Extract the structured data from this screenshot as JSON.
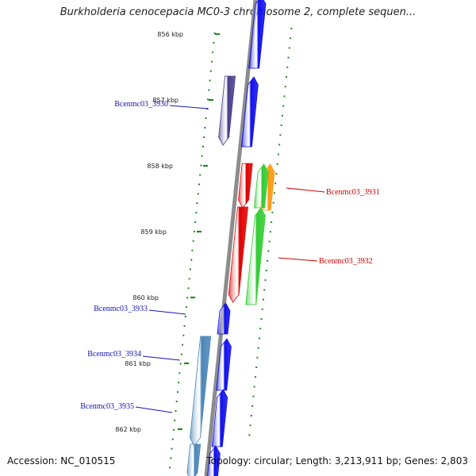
{
  "title": "Burkholderia cenocepacia MC0-3 chromosome 2, complete sequen...",
  "footer": {
    "accession_label": "Accession:",
    "accession": "NC_010515",
    "topology_text": "Topology: circular; Length: 3,213,911 bp; Genes: 2,803"
  },
  "colors": {
    "backbone": "#8c8c8c",
    "tick": "#1f8a1f",
    "blue_gene": "#1010ee",
    "purple_gene": "#4b3f8c",
    "steel_gene": "#4a86b8",
    "red_gene": "#e00000",
    "green_gene": "#33cc33",
    "orange_gene": "#ff9911",
    "label_blue": "#1414b4",
    "label_red": "#cc0000"
  },
  "ruler": {
    "labels": [
      "856 kbp",
      "857 kbp",
      "858 kbp",
      "859 kbp",
      "860 kbp",
      "861 kbp",
      "862 kbp"
    ]
  },
  "genes": [
    {
      "label": "",
      "strand": "+",
      "color": "blue_gene"
    },
    {
      "label": "Bcenmc03_3930",
      "strand": "-",
      "color": "purple_gene"
    },
    {
      "label": "",
      "strand": "+",
      "color": "blue_gene"
    },
    {
      "label": "",
      "strand": "-",
      "color": "red_gene"
    },
    {
      "label": "Bcenmc03_3931",
      "strand": "+",
      "color": "orange_gene"
    },
    {
      "label": "",
      "strand": "+",
      "color": "green_gene"
    },
    {
      "label": "Bcenmc03_3932",
      "strand": "-",
      "color": "red_gene"
    },
    {
      "label": "Bcenmc03_3933",
      "strand": "+",
      "color": "blue_gene"
    },
    {
      "label": "Bcenmc03_3934",
      "strand": "+",
      "color": "blue_gene"
    },
    {
      "label": "Bcenmc03_3935",
      "strand": "+",
      "color": "blue_gene"
    },
    {
      "label": "",
      "strand": "-",
      "color": "steel_gene"
    },
    {
      "label": "",
      "strand": "+",
      "color": "blue_gene"
    }
  ]
}
